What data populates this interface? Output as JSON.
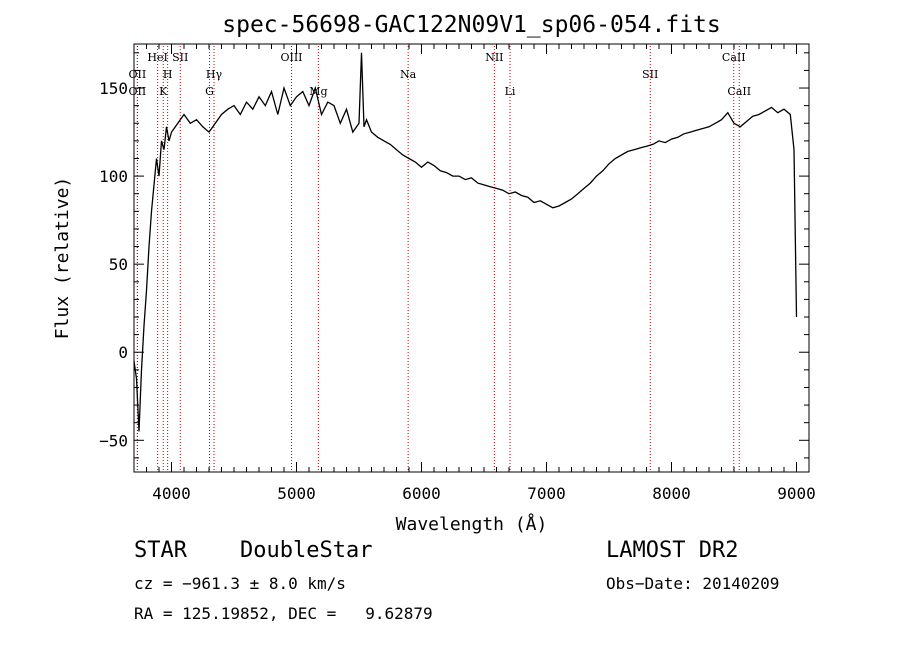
{
  "chart_data": {
    "type": "line",
    "title": "spec-56698-GAC122N09V1_sp06-054.fits",
    "xlabel": "Wavelength (Å)",
    "ylabel": "Flux (relative)",
    "xlim": [
      3700,
      9100
    ],
    "ylim": [
      -68,
      175
    ],
    "xticks": [
      4000,
      5000,
      6000,
      7000,
      8000,
      9000
    ],
    "yticks": [
      -50,
      0,
      50,
      100,
      150
    ],
    "line_color": "#000000",
    "marker_color": "#cc0000",
    "series": [
      {
        "x": [
          3700,
          3720,
          3740,
          3760,
          3780,
          3800,
          3820,
          3840,
          3860,
          3880,
          3900,
          3920,
          3940,
          3960,
          3980,
          4000,
          4050,
          4100,
          4150,
          4200,
          4250,
          4300,
          4350,
          4400,
          4450,
          4500,
          4550,
          4600,
          4650,
          4700,
          4750,
          4800,
          4850,
          4900,
          4950,
          5000,
          5050,
          5100,
          5150,
          5200,
          5250,
          5300,
          5350,
          5400,
          5450,
          5500,
          5520,
          5540,
          5560,
          5600,
          5650,
          5700,
          5750,
          5800,
          5850,
          5900,
          5950,
          6000,
          6050,
          6100,
          6150,
          6200,
          6250,
          6300,
          6350,
          6400,
          6450,
          6500,
          6550,
          6600,
          6650,
          6700,
          6750,
          6800,
          6850,
          6900,
          6950,
          7000,
          7050,
          7100,
          7150,
          7200,
          7250,
          7300,
          7350,
          7400,
          7450,
          7500,
          7550,
          7600,
          7650,
          7700,
          7750,
          7800,
          7850,
          7900,
          7950,
          8000,
          8050,
          8100,
          8150,
          8200,
          8250,
          8300,
          8350,
          8400,
          8450,
          8500,
          8550,
          8600,
          8650,
          8700,
          8750,
          8800,
          8850,
          8900,
          8950,
          8980,
          9000
        ],
        "y": [
          -5,
          -15,
          -45,
          -10,
          15,
          35,
          60,
          80,
          95,
          110,
          100,
          120,
          115,
          128,
          120,
          125,
          130,
          135,
          130,
          132,
          128,
          125,
          130,
          135,
          138,
          140,
          135,
          142,
          138,
          145,
          140,
          148,
          135,
          150,
          140,
          145,
          148,
          140,
          150,
          135,
          142,
          140,
          130,
          138,
          125,
          130,
          170,
          128,
          132,
          125,
          122,
          120,
          118,
          115,
          112,
          110,
          108,
          105,
          108,
          106,
          103,
          102,
          100,
          100,
          98,
          99,
          96,
          95,
          94,
          93,
          92,
          90,
          91,
          89,
          88,
          85,
          86,
          84,
          82,
          83,
          85,
          87,
          90,
          93,
          96,
          100,
          103,
          107,
          110,
          112,
          114,
          115,
          116,
          117,
          118,
          120,
          119,
          121,
          122,
          124,
          125,
          126,
          127,
          128,
          130,
          132,
          136,
          130,
          128,
          131,
          134,
          135,
          137,
          139,
          136,
          138,
          135,
          115,
          20
        ]
      }
    ],
    "markers": [
      {
        "wavelength": 3727,
        "label": "OII",
        "row": 2
      },
      {
        "wavelength": 3727,
        "label": "OII",
        "row": 3
      },
      {
        "wavelength": 3889,
        "label": "HeI",
        "row": 1
      },
      {
        "wavelength": 3934,
        "label": "K",
        "row": 3
      },
      {
        "wavelength": 3969,
        "label": "H",
        "row": 2
      },
      {
        "wavelength": 4070,
        "label": "SII",
        "row": 1
      },
      {
        "wavelength": 4304,
        "label": "G",
        "row": 3
      },
      {
        "wavelength": 4340,
        "label": "Hγ",
        "row": 2
      },
      {
        "wavelength": 4960,
        "label": "OIII",
        "row": 1
      },
      {
        "wavelength": 5175,
        "label": "Mg",
        "row": 3
      },
      {
        "wavelength": 5893,
        "label": "Na",
        "row": 2
      },
      {
        "wavelength": 6583,
        "label": "NII",
        "row": 1
      },
      {
        "wavelength": 6708,
        "label": "Li",
        "row": 3
      },
      {
        "wavelength": 7830,
        "label": "SII",
        "row": 2
      },
      {
        "wavelength": 8498,
        "label": "CaII",
        "row": 1
      },
      {
        "wavelength": 8542,
        "label": "CaII",
        "row": 3
      }
    ]
  },
  "footer": {
    "class_label": "STAR",
    "subclass_label": "DoubleStar",
    "survey_label": "LAMOST DR2",
    "cz_text": "cz = −961.3 ± 8.0 km/s",
    "obs_date_text": "Obs−Date: 20140209",
    "coords_text": "RA = 125.19852, DEC =   9.62879"
  }
}
